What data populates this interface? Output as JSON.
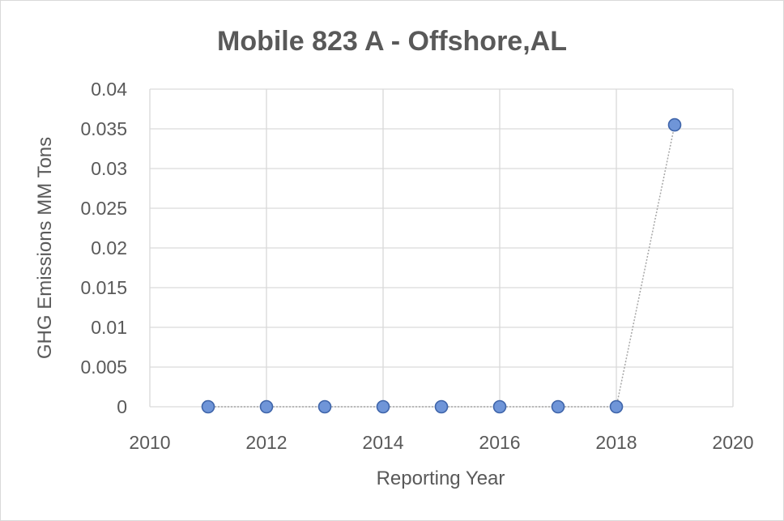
{
  "chart_data": {
    "type": "scatter",
    "title": "Mobile 823 A - Offshore,AL",
    "xlabel": "Reporting Year",
    "ylabel": "GHG Emissions MM Tons",
    "xlim": [
      2010,
      2020
    ],
    "ylim": [
      0,
      0.04
    ],
    "x_ticks": [
      "2010",
      "2012",
      "2014",
      "2016",
      "2018",
      "2020"
    ],
    "y_ticks": [
      "0",
      "0.005",
      "0.01",
      "0.015",
      "0.02",
      "0.025",
      "0.03",
      "0.035",
      "0.04"
    ],
    "grid": true,
    "legend": "none",
    "line_style": "dotted",
    "marker_color": "#6f95d8",
    "x": [
      2011,
      2012,
      2013,
      2014,
      2015,
      2016,
      2017,
      2018,
      2019
    ],
    "y": [
      0,
      0,
      0,
      0,
      0,
      0,
      0,
      0,
      0.0355
    ]
  }
}
